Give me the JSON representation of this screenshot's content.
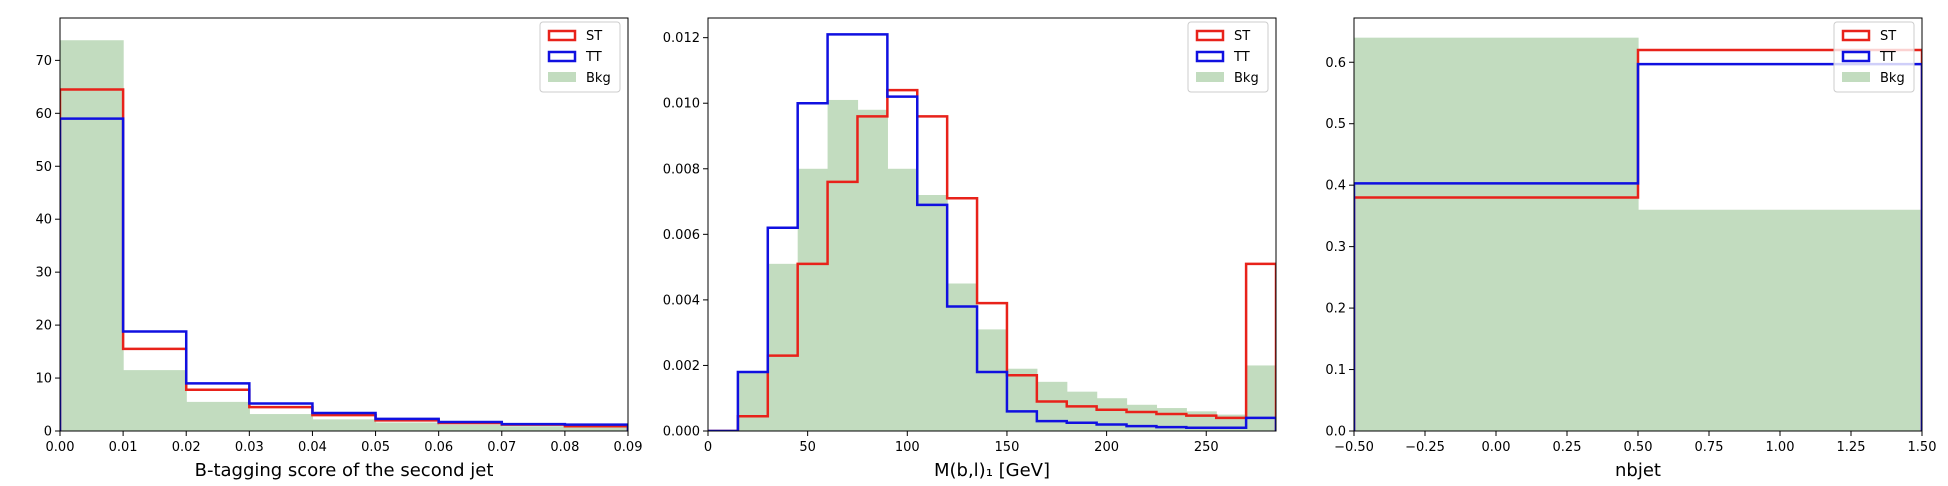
{
  "colors": {
    "ST": "#e8221a",
    "TT": "#1010e0",
    "Bkg": "#c2dcbf"
  },
  "chart_data": [
    {
      "type": "histogram",
      "xlabel": "B-tagging score of the second jet",
      "ylabel": "",
      "xlim": [
        0,
        0.09
      ],
      "ylim": [
        0,
        78
      ],
      "xticks": [
        0,
        0.01,
        0.02,
        0.03,
        0.04,
        0.05,
        0.06,
        0.07,
        0.08,
        0.09
      ],
      "xtick_labels": [
        "0.00",
        "0.01",
        "0.02",
        "0.03",
        "0.04",
        "0.05",
        "0.06",
        "0.07",
        "0.08",
        "0.09"
      ],
      "yticks": [
        0,
        10,
        20,
        30,
        40,
        50,
        60,
        70
      ],
      "ytick_labels": [
        "0",
        "10",
        "20",
        "30",
        "40",
        "50",
        "60",
        "70"
      ],
      "bin_edges": [
        0,
        0.01,
        0.02,
        0.03,
        0.04,
        0.05,
        0.06,
        0.07,
        0.08,
        0.09
      ],
      "legend_position": "upper-right",
      "series": [
        {
          "name": "ST",
          "style": "step",
          "values": [
            64.5,
            15.5,
            7.8,
            4.5,
            3.0,
            2.0,
            1.5,
            1.2,
            0.9
          ]
        },
        {
          "name": "TT",
          "style": "step",
          "values": [
            59.0,
            18.8,
            9.0,
            5.2,
            3.4,
            2.3,
            1.7,
            1.3,
            1.2
          ]
        },
        {
          "name": "Bkg",
          "style": "filled",
          "values": [
            73.8,
            11.5,
            5.5,
            3.2,
            2.2,
            1.6,
            1.2,
            0.9,
            0.7
          ]
        }
      ]
    },
    {
      "type": "histogram",
      "xlabel": "M(b,l)₁ [GeV]",
      "ylabel": "",
      "xlim": [
        0,
        285
      ],
      "ylim": [
        0,
        0.0126
      ],
      "xticks": [
        0,
        50,
        100,
        150,
        200,
        250
      ],
      "xtick_labels": [
        "0",
        "50",
        "100",
        "150",
        "200",
        "250"
      ],
      "yticks": [
        0,
        0.002,
        0.004,
        0.006,
        0.008,
        0.01,
        0.012
      ],
      "ytick_labels": [
        "0.000",
        "0.002",
        "0.004",
        "0.006",
        "0.008",
        "0.010",
        "0.012"
      ],
      "bin_edges": [
        0,
        15,
        30,
        45,
        60,
        75,
        90,
        105,
        120,
        135,
        150,
        165,
        180,
        195,
        210,
        225,
        240,
        255,
        270,
        285
      ],
      "legend_position": "upper-right",
      "series": [
        {
          "name": "ST",
          "style": "step",
          "values": [
            0,
            0.00045,
            0.0023,
            0.0051,
            0.0076,
            0.0096,
            0.0104,
            0.0096,
            0.0071,
            0.0039,
            0.0017,
            0.0009,
            0.00075,
            0.00065,
            0.00058,
            0.00052,
            0.00047,
            0.0004,
            0.0051
          ]
        },
        {
          "name": "TT",
          "style": "step",
          "values": [
            0,
            0.0018,
            0.0062,
            0.01,
            0.0121,
            0.0121,
            0.0102,
            0.0069,
            0.0038,
            0.0018,
            0.0006,
            0.0003,
            0.00025,
            0.0002,
            0.00015,
            0.00012,
            0.0001,
            0.0001,
            0.0004
          ]
        },
        {
          "name": "Bkg",
          "style": "filled",
          "values": [
            0,
            0.0018,
            0.0051,
            0.008,
            0.0101,
            0.0098,
            0.008,
            0.0072,
            0.0045,
            0.0031,
            0.0019,
            0.0015,
            0.0012,
            0.001,
            0.0008,
            0.0007,
            0.0006,
            0.0005,
            0.002
          ]
        }
      ]
    },
    {
      "type": "histogram",
      "xlabel": "nbjet",
      "ylabel": "",
      "xlim": [
        -0.5,
        1.5
      ],
      "ylim": [
        0,
        0.672
      ],
      "xticks": [
        -0.5,
        -0.25,
        0,
        0.25,
        0.5,
        0.75,
        1.0,
        1.25,
        1.5
      ],
      "xtick_labels": [
        "−0.50",
        "−0.25",
        "0.00",
        "0.25",
        "0.50",
        "0.75",
        "1.00",
        "1.25",
        "1.50"
      ],
      "yticks": [
        0,
        0.1,
        0.2,
        0.3,
        0.4,
        0.5,
        0.6
      ],
      "ytick_labels": [
        "0.0",
        "0.1",
        "0.2",
        "0.3",
        "0.4",
        "0.5",
        "0.6"
      ],
      "bin_edges": [
        -0.5,
        0.5,
        1.5
      ],
      "legend_position": "upper-right",
      "series": [
        {
          "name": "ST",
          "style": "step",
          "values": [
            0.38,
            0.62
          ]
        },
        {
          "name": "TT",
          "style": "step",
          "values": [
            0.403,
            0.597
          ]
        },
        {
          "name": "Bkg",
          "style": "filled",
          "values": [
            0.64,
            0.36
          ]
        }
      ]
    }
  ]
}
